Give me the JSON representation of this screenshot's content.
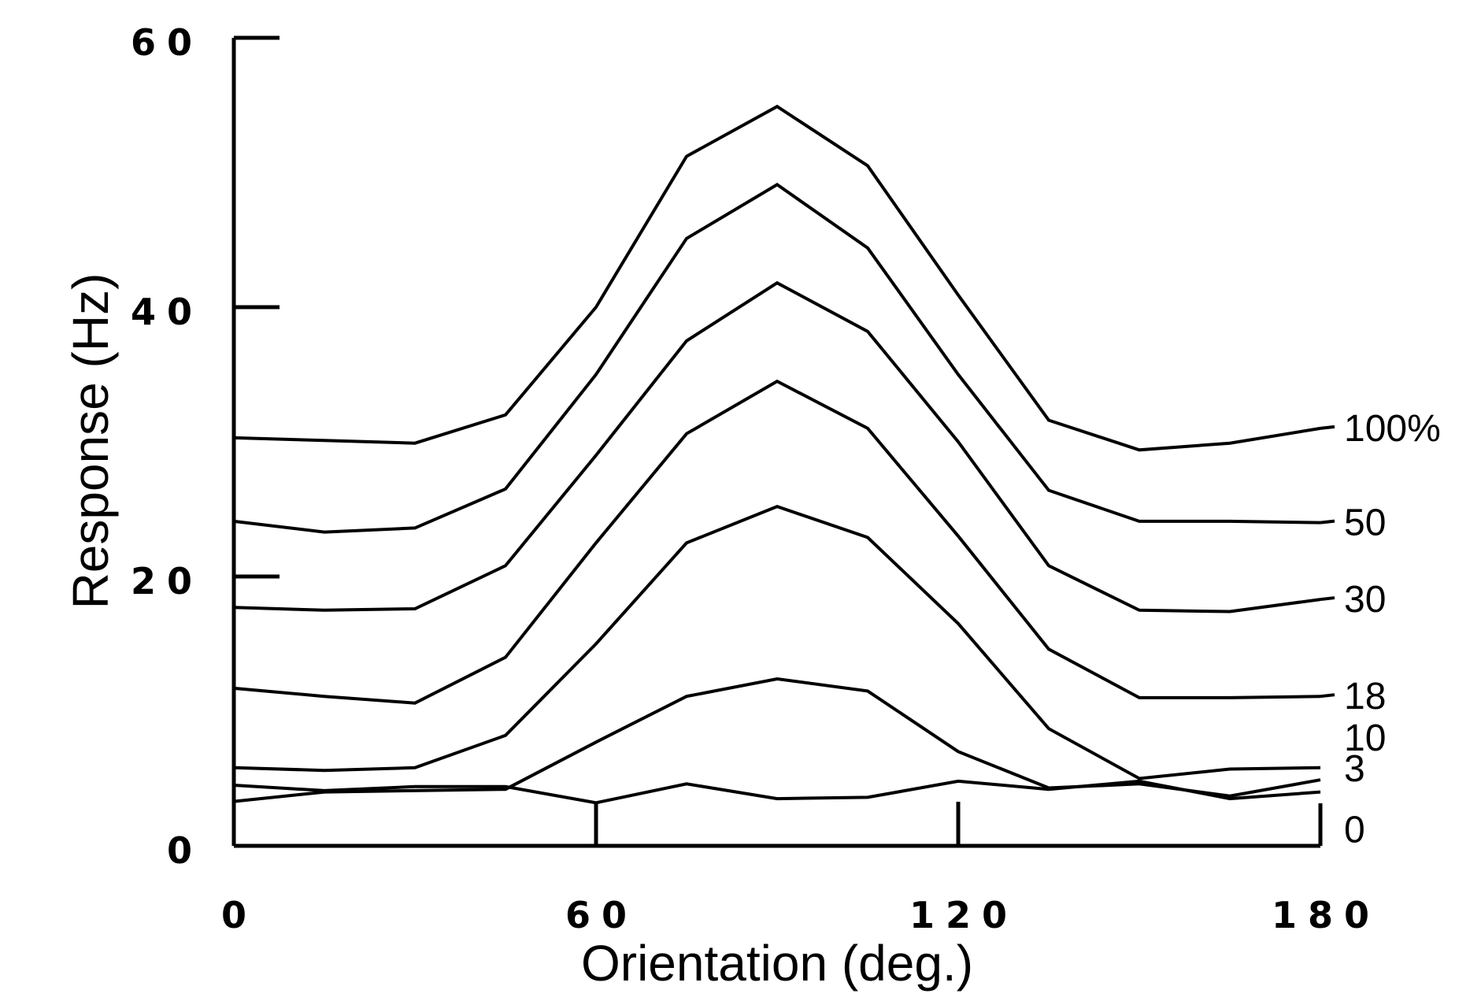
{
  "chart_data": {
    "type": "line",
    "xlabel": "Orientation (deg.)",
    "ylabel": "Response (Hz)",
    "xlim": [
      0,
      180
    ],
    "ylim": [
      0,
      60
    ],
    "xticks": [
      "0",
      "60",
      "120",
      "180"
    ],
    "yticks": [
      "0",
      "20",
      "40",
      "60"
    ],
    "grid": false,
    "legend": "series labels at right end of lines",
    "x": [
      0,
      15,
      30,
      45,
      60,
      75,
      90,
      105,
      120,
      135,
      150,
      165,
      180
    ],
    "series": [
      {
        "name": "100%",
        "values": [
          30.3,
          30.1,
          29.9,
          32.0,
          40.0,
          51.2,
          54.9,
          50.5,
          40.9,
          31.6,
          29.4,
          29.9,
          31.0
        ]
      },
      {
        "name": "50",
        "values": [
          24.1,
          23.3,
          23.6,
          26.5,
          35.0,
          45.1,
          49.1,
          44.4,
          35.0,
          26.4,
          24.1,
          24.1,
          24.0
        ]
      },
      {
        "name": "30",
        "values": [
          17.7,
          17.5,
          17.6,
          20.8,
          29.0,
          37.5,
          41.8,
          38.2,
          30.0,
          20.8,
          17.5,
          17.4,
          18.3
        ]
      },
      {
        "name": "18",
        "values": [
          11.7,
          11.1,
          10.6,
          14.0,
          22.5,
          30.6,
          34.5,
          31.0,
          23.0,
          14.6,
          11.0,
          11.0,
          11.1
        ]
      },
      {
        "name": "10",
        "values": [
          5.8,
          5.6,
          5.8,
          8.2,
          15.0,
          22.5,
          25.2,
          22.9,
          16.5,
          8.7,
          5.0,
          5.7,
          5.8
        ]
      },
      {
        "name": "3",
        "values": [
          3.3,
          4.0,
          4.1,
          4.2,
          7.7,
          11.1,
          12.4,
          11.5,
          7.0,
          4.3,
          4.6,
          3.7,
          4.9
        ]
      },
      {
        "name": "0",
        "values": [
          4.5,
          4.1,
          4.4,
          4.4,
          3.2,
          4.6,
          3.5,
          3.6,
          4.8,
          4.2,
          4.8,
          3.5,
          4.0
        ]
      }
    ]
  }
}
